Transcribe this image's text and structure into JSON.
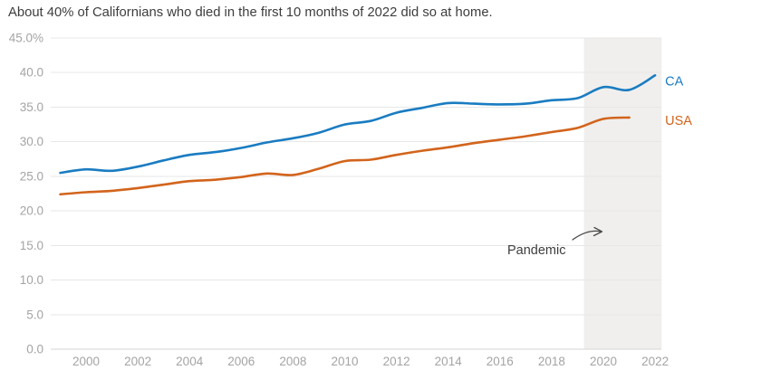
{
  "title": "About 40% of Californians who died in the first 10 months of 2022 did so at home.",
  "colors": {
    "ca_line": "#1a7cc1",
    "usa_line": "#d2641c",
    "grid": "#e7e7e7",
    "axis_line": "#d4d4d4",
    "tick_label": "#a4a4a4",
    "title_text": "#3d3d3d",
    "pandemic_band": "#f0efee",
    "arrow": "#4a4a4a"
  },
  "chart_data": {
    "type": "line",
    "title": "About 40% of Californians who died in the first 10 months of 2022 did so at home.",
    "xlabel": "",
    "ylabel": "",
    "y_unit": "%",
    "ylim": [
      0,
      45
    ],
    "xlim": [
      1998.6,
      2023.1
    ],
    "grid": "horizontal",
    "legend_position": "right-end-of-line",
    "y_tick_values": [
      45,
      40,
      35,
      30,
      25,
      20,
      15,
      10,
      5,
      0
    ],
    "y_tick_labels": [
      "45.0%",
      "40.0",
      "35.0",
      "30.0",
      "25.0",
      "20.0",
      "15.0",
      "10.0",
      "5.0",
      "0.0"
    ],
    "x_tick_values": [
      2000,
      2002,
      2004,
      2006,
      2008,
      2010,
      2012,
      2014,
      2016,
      2018,
      2020,
      2022
    ],
    "x_tick_labels": [
      "2000",
      "2002",
      "2004",
      "2006",
      "2008",
      "2010",
      "2012",
      "2014",
      "2016",
      "2018",
      "2020",
      "2022"
    ],
    "pandemic_band": {
      "label": "Pandemic",
      "x_start_year": 2019.25,
      "x_end_year": 2022.25
    },
    "series": [
      {
        "name": "CA",
        "color": "#1a7cc1",
        "years": [
          1999,
          2000,
          2001,
          2002,
          2003,
          2004,
          2005,
          2006,
          2007,
          2008,
          2009,
          2010,
          2011,
          2012,
          2013,
          2014,
          2015,
          2016,
          2017,
          2018,
          2019,
          2020,
          2021,
          2022
        ],
        "values": [
          25.5,
          26.0,
          25.8,
          26.4,
          27.3,
          28.1,
          28.5,
          29.1,
          29.9,
          30.5,
          31.3,
          32.5,
          33.0,
          34.2,
          34.9,
          35.6,
          35.5,
          35.4,
          35.5,
          36.0,
          36.3,
          37.9,
          37.5,
          39.6
        ],
        "label_dy": 11
      },
      {
        "name": "USA",
        "color": "#d2641c",
        "years": [
          1999,
          2000,
          2001,
          2002,
          2003,
          2004,
          2005,
          2006,
          2007,
          2008,
          2009,
          2010,
          2011,
          2012,
          2013,
          2014,
          2015,
          2016,
          2017,
          2018,
          2019,
          2020,
          2021
        ],
        "values": [
          22.4,
          22.7,
          22.9,
          23.3,
          23.8,
          24.3,
          24.5,
          24.9,
          25.4,
          25.2,
          26.1,
          27.2,
          27.4,
          28.1,
          28.7,
          29.2,
          29.8,
          30.3,
          30.8,
          31.4,
          32.0,
          33.3,
          33.5
        ],
        "label_dy": 8
      }
    ]
  }
}
